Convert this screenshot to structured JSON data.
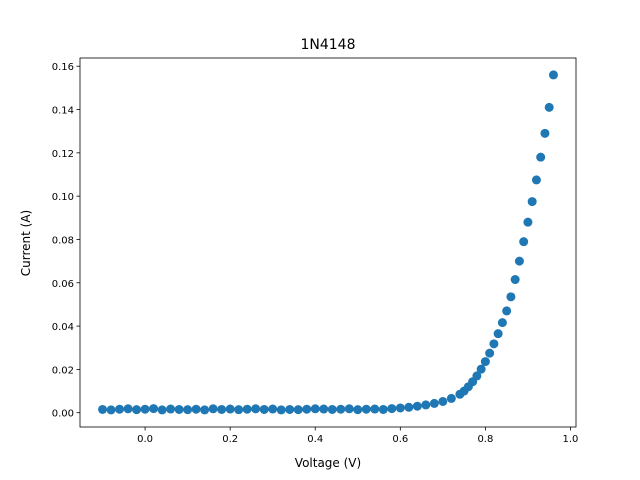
{
  "chart_data": {
    "type": "scatter",
    "title": "1N4148",
    "x_label": "Voltage (V)",
    "y_label": "Current (A)",
    "color": "#1f77b4",
    "x": [
      -0.1,
      -0.08,
      -0.06,
      -0.04,
      -0.02,
      0.0,
      0.02,
      0.04,
      0.06,
      0.08,
      0.1,
      0.12,
      0.14,
      0.16,
      0.18,
      0.2,
      0.22,
      0.24,
      0.26,
      0.28,
      0.3,
      0.32,
      0.34,
      0.36,
      0.38,
      0.4,
      0.42,
      0.44,
      0.46,
      0.48,
      0.5,
      0.52,
      0.54,
      0.56,
      0.58,
      0.6,
      0.62,
      0.64,
      0.66,
      0.68,
      0.7,
      0.72,
      0.74,
      0.75,
      0.76,
      0.77,
      0.78,
      0.79,
      0.8,
      0.81,
      0.82,
      0.83,
      0.84,
      0.85,
      0.86,
      0.87,
      0.88,
      0.89,
      0.9,
      0.91,
      0.92,
      0.93,
      0.94,
      0.95,
      0.96
    ],
    "values": [
      0.0015,
      0.0013,
      0.0016,
      0.0018,
      0.0014,
      0.0016,
      0.0019,
      0.0013,
      0.0017,
      0.0015,
      0.0014,
      0.0016,
      0.0013,
      0.0018,
      0.0015,
      0.0017,
      0.0014,
      0.0016,
      0.0018,
      0.0015,
      0.0017,
      0.0013,
      0.0015,
      0.0014,
      0.0016,
      0.0018,
      0.0017,
      0.0015,
      0.0016,
      0.0018,
      0.0014,
      0.0016,
      0.0017,
      0.0015,
      0.0019,
      0.0022,
      0.0025,
      0.003,
      0.0036,
      0.0043,
      0.0052,
      0.0066,
      0.0085,
      0.01,
      0.012,
      0.0143,
      0.017,
      0.0201,
      0.0236,
      0.0275,
      0.0318,
      0.0365,
      0.0416,
      0.047,
      0.0535,
      0.0615,
      0.07,
      0.079,
      0.088,
      0.0975,
      0.1075,
      0.118,
      0.129,
      0.141,
      0.156
    ],
    "xlim": [
      -0.153,
      1.013
    ],
    "ylim": [
      -0.0066,
      0.1638
    ],
    "xticks": [
      {
        "value": 0,
        "label": "0.0"
      },
      {
        "value": 0.2,
        "label": "0.2"
      },
      {
        "value": 0.4,
        "label": "0.4"
      },
      {
        "value": 0.6,
        "label": "0.6"
      },
      {
        "value": 0.8,
        "label": "0.8"
      },
      {
        "value": 1,
        "label": "1.0"
      }
    ],
    "yticks": [
      {
        "value": 0,
        "label": "0.00"
      },
      {
        "value": 0.02,
        "label": "0.02"
      },
      {
        "value": 0.04,
        "label": "0.04"
      },
      {
        "value": 0.06,
        "label": "0.06"
      },
      {
        "value": 0.08,
        "label": "0.08"
      },
      {
        "value": 0.1,
        "label": "0.10"
      },
      {
        "value": 0.12,
        "label": "0.12"
      },
      {
        "value": 0.14,
        "label": "0.14"
      },
      {
        "value": 0.16,
        "label": "0.16"
      }
    ]
  }
}
